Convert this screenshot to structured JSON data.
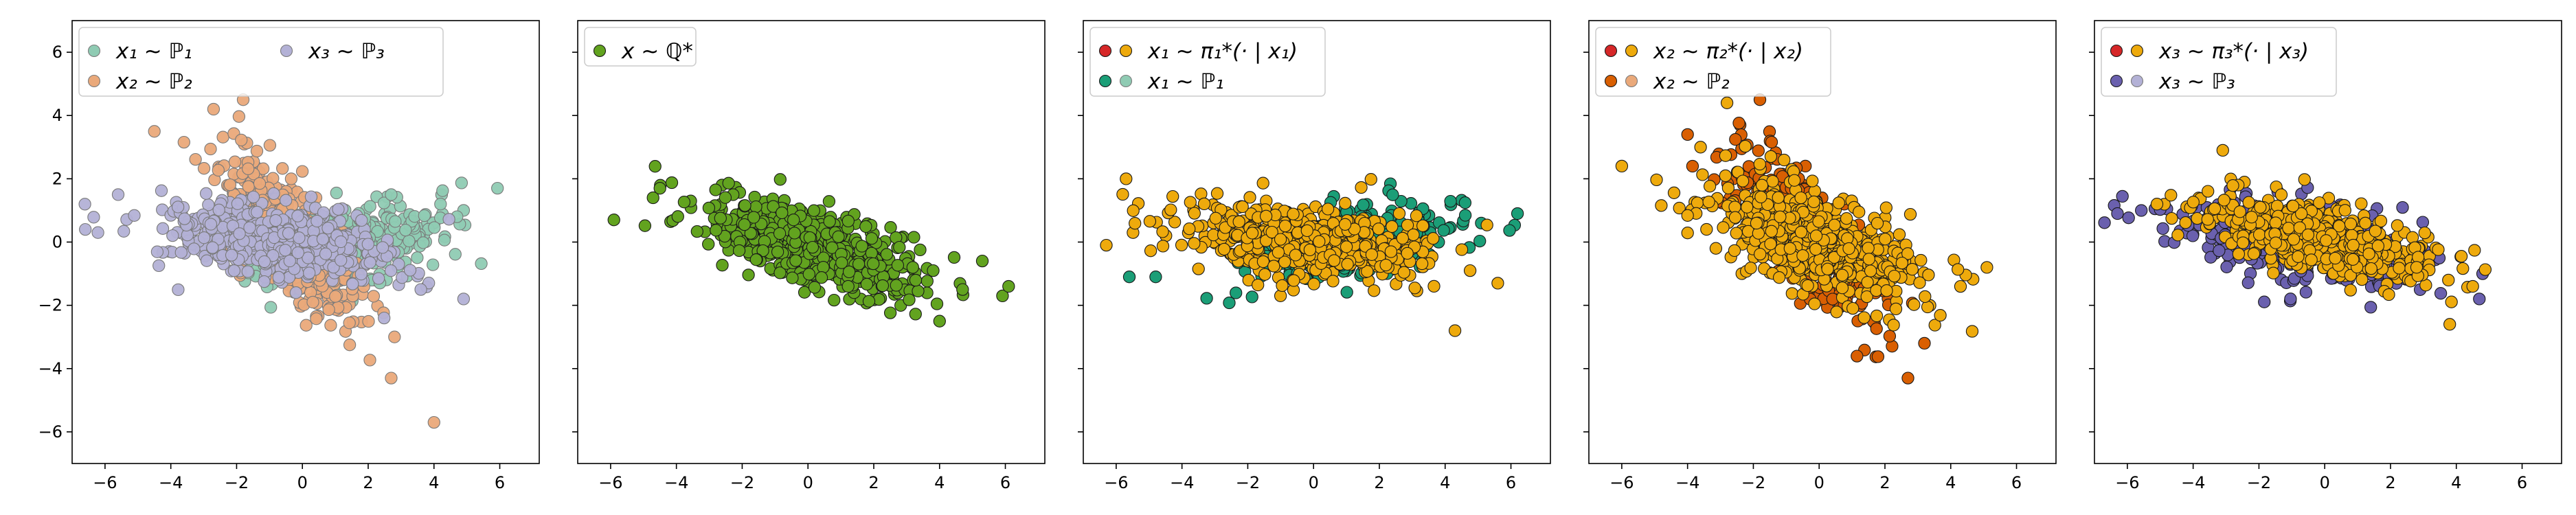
{
  "colors": {
    "P1": "#8fcbb3",
    "P2": "#eaa97a",
    "P3": "#b3b1d6",
    "Qstar": "#62a31f",
    "orange": "#eeaa0c",
    "red": "#d62728",
    "teal": "#1b9e77",
    "darkOrange": "#d95f02",
    "purple": "#6a60ae"
  },
  "chart_data": [
    {
      "type": "scatter",
      "panel": 1,
      "xlim": [
        -7,
        7.2
      ],
      "ylim": [
        -7,
        7
      ],
      "xticks": [
        "−6",
        "−4",
        "−2",
        "0",
        "2",
        "4",
        "6"
      ],
      "yticks": [
        "6",
        "4",
        "2",
        "0",
        "−2",
        "−4",
        "−6"
      ],
      "legend": {
        "placement": "upper-left",
        "columns": 2,
        "entries": [
          {
            "label": "x₁ ∼ ℙ₁",
            "markers": [
              "P1"
            ]
          },
          {
            "label": "x₃ ∼ ℙ₃",
            "markers": [
              "P3"
            ]
          },
          {
            "label": "x₂ ∼ ℙ₂",
            "markers": [
              "P2"
            ]
          }
        ]
      },
      "series": [
        {
          "name": "x₁ ∼ ℙ₁",
          "color": "P1",
          "edge": "light",
          "alpha": 0.95,
          "dist": {
            "n": 360,
            "cx": 1.3,
            "cy": -0.1,
            "sa": 1.6,
            "sb": 0.6,
            "angle": 12
          },
          "extra": [
            [
              4.9,
              1.0
            ],
            [
              4.2,
              1.2
            ],
            [
              2.7,
              1.5
            ],
            [
              4.7,
              0.8
            ]
          ]
        },
        {
          "name": "x₂ ∼ ℙ₂",
          "color": "P2",
          "edge": "light",
          "alpha": 0.95,
          "dist": {
            "n": 360,
            "cx": -0.5,
            "cy": 0.2,
            "sa": 1.7,
            "sb": 0.6,
            "angle": -53
          },
          "extra": [
            [
              -1.8,
              4.5
            ],
            [
              -2.7,
              4.2
            ],
            [
              -4.5,
              3.5
            ],
            [
              2.7,
              -4.3
            ],
            [
              4.0,
              -5.7
            ],
            [
              2.8,
              -3.0
            ]
          ]
        },
        {
          "name": "x₃ ∼ ℙ₃",
          "color": "P3",
          "edge": "light",
          "alpha": 0.95,
          "dist": {
            "n": 520,
            "cx": -0.8,
            "cy": 0.0,
            "sa": 1.9,
            "sb": 0.55,
            "angle": -9
          },
          "extra": [
            [
              -6.6,
              0.4
            ],
            [
              -5.6,
              1.5
            ],
            [
              3.6,
              -1.5
            ],
            [
              4.9,
              -1.8
            ]
          ]
        }
      ]
    },
    {
      "type": "scatter",
      "panel": 2,
      "xlim": [
        -7,
        7.2
      ],
      "ylim": [
        -7,
        7
      ],
      "xticks": [
        "−6",
        "−4",
        "−2",
        "0",
        "2",
        "4",
        "6"
      ],
      "legend": {
        "placement": "upper-left",
        "columns": 1,
        "entries": [
          {
            "label": "x ∼ ℚ*",
            "markers": [
              "Qstar"
            ]
          }
        ]
      },
      "series": [
        {
          "name": "x ∼ ℚ*",
          "color": "Qstar",
          "edge": "dark",
          "alpha": 1,
          "dist": {
            "n": 560,
            "cx": 0.1,
            "cy": -0.2,
            "sa": 1.8,
            "sb": 0.55,
            "angle": -18
          },
          "extra": [
            [
              -5.9,
              0.7
            ],
            [
              -4.5,
              1.7
            ],
            [
              5.3,
              -0.6
            ],
            [
              6.1,
              -1.4
            ],
            [
              4.0,
              -2.5
            ],
            [
              4.7,
              -1.5
            ]
          ]
        }
      ]
    },
    {
      "type": "scatter",
      "panel": 3,
      "xlim": [
        -7,
        7.2
      ],
      "ylim": [
        -7,
        7
      ],
      "xticks": [
        "−6",
        "−4",
        "−2",
        "0",
        "2",
        "4",
        "6"
      ],
      "legend": {
        "placement": "upper-left",
        "columns": 1,
        "entries": [
          {
            "label": "x₁ ∼ π₁*(· | x₁)",
            "markers": [
              "red",
              "orange"
            ]
          },
          {
            "label": "x₁ ∼ ℙ₁",
            "markers": [
              "teal",
              "P1"
            ]
          }
        ]
      },
      "series": [
        {
          "name": "x₁ ∼ ℙ₁",
          "color": "teal",
          "edge": "dark",
          "alpha": 1,
          "dist": {
            "n": 300,
            "cx": 1.3,
            "cy": -0.1,
            "sa": 1.6,
            "sb": 0.55,
            "angle": 12
          },
          "extra": [
            [
              6.2,
              0.9
            ],
            [
              5.1,
              0.6
            ],
            [
              -4.8,
              -1.1
            ],
            [
              -5.6,
              -1.1
            ]
          ]
        },
        {
          "name": "x₁ ∼ π₁*(· | x₁)",
          "color": "orange",
          "edge": "dark",
          "alpha": 1,
          "dist": {
            "n": 520,
            "cx": 0.0,
            "cy": 0.0,
            "sa": 1.9,
            "sb": 0.55,
            "angle": -6
          },
          "extra": [
            [
              -5.7,
              2.0
            ],
            [
              -6.3,
              -0.1
            ],
            [
              4.3,
              -2.8
            ],
            [
              5.6,
              -1.3
            ]
          ]
        }
      ]
    },
    {
      "type": "scatter",
      "panel": 4,
      "xlim": [
        -7,
        7.2
      ],
      "ylim": [
        -7,
        7
      ],
      "xticks": [
        "−6",
        "−4",
        "−2",
        "0",
        "2",
        "4",
        "6"
      ],
      "legend": {
        "placement": "upper-left",
        "columns": 1,
        "entries": [
          {
            "label": "x₂ ∼ π₂*(· | x₂)",
            "markers": [
              "red",
              "orange"
            ]
          },
          {
            "label": "x₂ ∼ ℙ₂",
            "markers": [
              "darkOrange",
              "P2"
            ]
          }
        ]
      },
      "series": [
        {
          "name": "x₂ ∼ ℙ₂",
          "color": "darkOrange",
          "edge": "dark",
          "alpha": 1,
          "dist": {
            "n": 360,
            "cx": -0.5,
            "cy": 0.2,
            "sa": 1.7,
            "sb": 0.6,
            "angle": -53
          },
          "extra": [
            [
              -1.8,
              4.5
            ],
            [
              -4.0,
              3.4
            ],
            [
              2.7,
              -4.3
            ],
            [
              3.2,
              -3.2
            ]
          ]
        },
        {
          "name": "x₂ ∼ π₂*(· | x₂)",
          "color": "orange",
          "edge": "dark",
          "alpha": 1,
          "dist": {
            "n": 560,
            "cx": 0.0,
            "cy": 0.0,
            "sa": 1.8,
            "sb": 0.7,
            "angle": -25
          },
          "extra": [
            [
              -6.0,
              2.4
            ],
            [
              5.1,
              -0.8
            ],
            [
              -2.8,
              4.4
            ]
          ]
        }
      ]
    },
    {
      "type": "scatter",
      "panel": 5,
      "xlim": [
        -7,
        7.2
      ],
      "ylim": [
        -7,
        7
      ],
      "xticks": [
        "−6",
        "−4",
        "−2",
        "0",
        "2",
        "4",
        "6"
      ],
      "legend": {
        "placement": "upper-left",
        "columns": 1,
        "entries": [
          {
            "label": "x₃ ∼ π₃*(· | x₃)",
            "markers": [
              "red",
              "orange"
            ]
          },
          {
            "label": "x₃ ∼ ℙ₃",
            "markers": [
              "purple",
              "P3"
            ]
          }
        ]
      },
      "series": [
        {
          "name": "x₃ ∼ ℙ₃",
          "color": "purple",
          "edge": "dark",
          "alpha": 1,
          "dist": {
            "n": 420,
            "cx": -0.8,
            "cy": 0.0,
            "sa": 1.9,
            "sb": 0.55,
            "angle": -9
          },
          "extra": [
            [
              -6.3,
              0.9
            ],
            [
              4.8,
              -1.0
            ],
            [
              4.7,
              -1.8
            ]
          ]
        },
        {
          "name": "x₃ ∼ π₃*(· | x₃)",
          "color": "orange",
          "edge": "dark",
          "alpha": 1,
          "dist": {
            "n": 520,
            "cx": -0.2,
            "cy": 0.1,
            "sa": 1.8,
            "sb": 0.5,
            "angle": -12
          },
          "extra": [
            [
              -5.1,
              1.2
            ],
            [
              -3.1,
              2.9
            ],
            [
              3.8,
              -2.6
            ],
            [
              4.5,
              -1.4
            ]
          ]
        }
      ]
    }
  ]
}
